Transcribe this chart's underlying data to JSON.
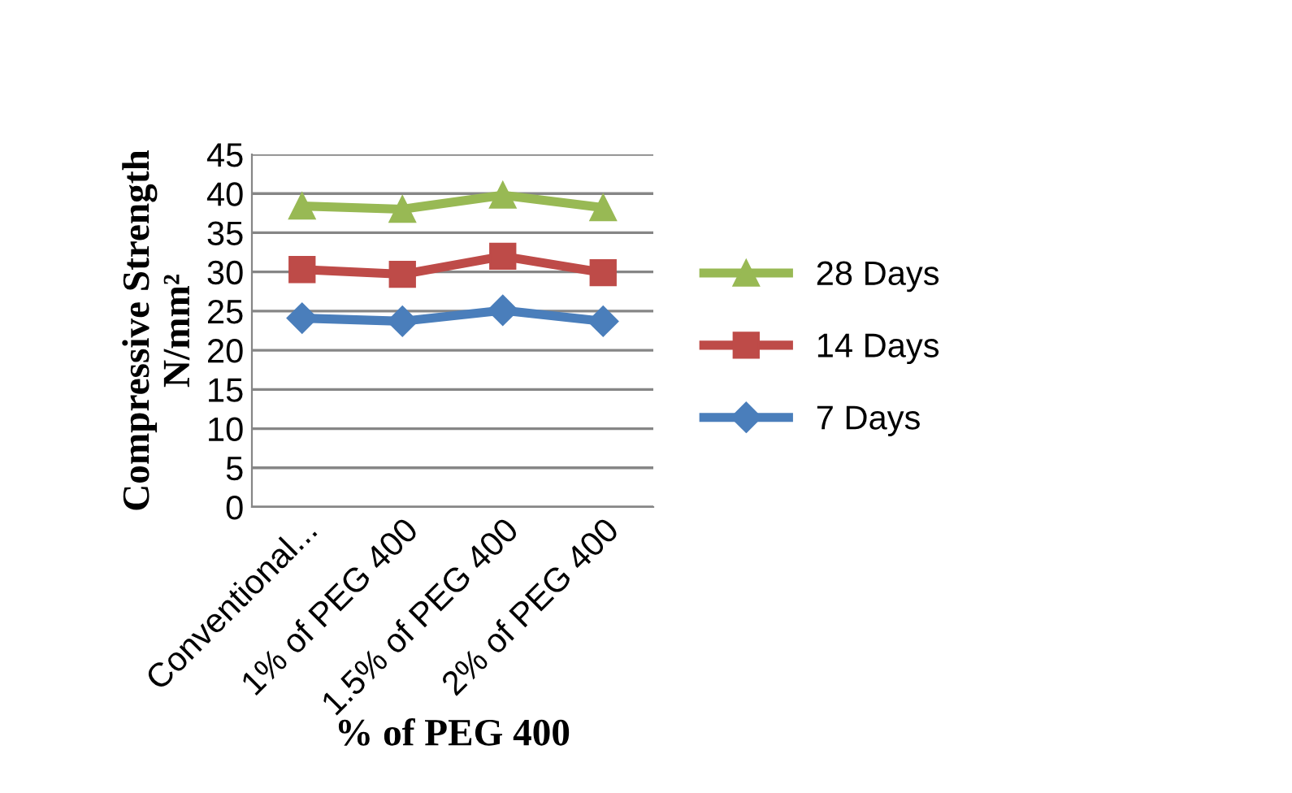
{
  "chart_data": {
    "type": "line",
    "xlabel": "% of PEG 400",
    "ylabel": "Compressive Strength\nN/mm²",
    "categories": [
      "Conventional...",
      "1% of PEG 400",
      "1.5% of PEG 400",
      "2% of PEG 400"
    ],
    "series": [
      {
        "name": "7 Days",
        "color": "#4a7ebb",
        "values": [
          24.1,
          23.7,
          25.1,
          23.7
        ],
        "marker": "diamond"
      },
      {
        "name": "14 Days",
        "color": "#be4b48",
        "values": [
          30.3,
          29.7,
          32.0,
          29.9
        ],
        "marker": "square"
      },
      {
        "name": "28 Days",
        "color": "#98b954",
        "values": [
          38.4,
          38.0,
          39.8,
          38.2
        ],
        "marker": "triangle"
      }
    ],
    "ylim": [
      0,
      45
    ],
    "yticks": [
      0,
      5,
      10,
      15,
      20,
      25,
      30,
      35,
      40,
      45
    ],
    "grid": "y",
    "legend": "right",
    "line_style": "solid"
  }
}
